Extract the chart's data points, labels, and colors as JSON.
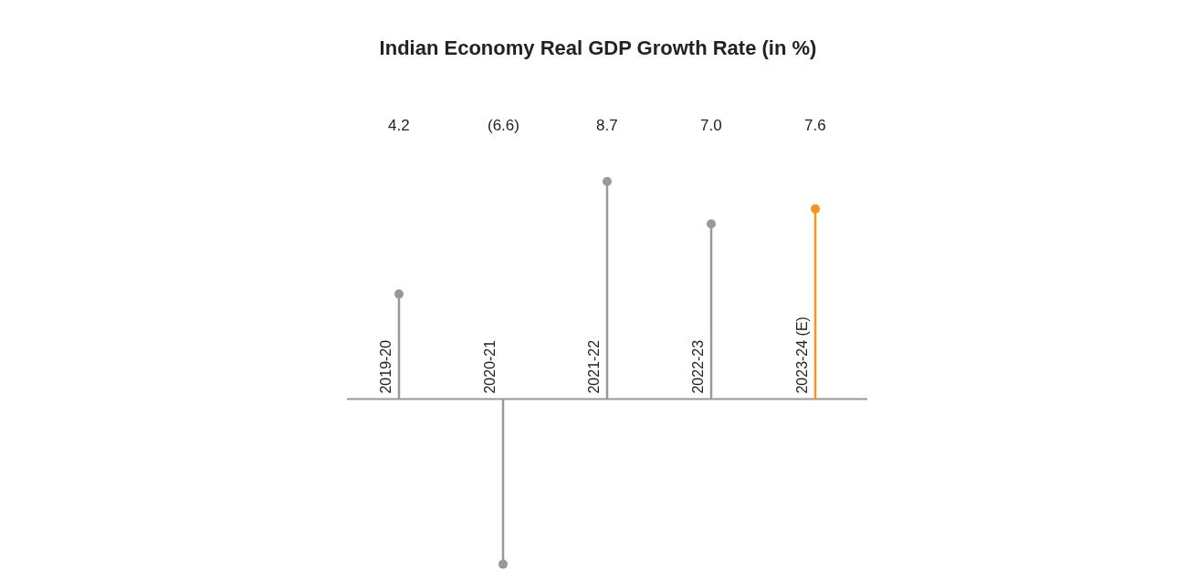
{
  "chart_data": {
    "type": "lollipop",
    "title": "Indian Economy Real GDP Growth Rate (in %)",
    "categories": [
      "2019-20",
      "2020-21",
      "2021-22",
      "2022-23",
      "2023-24 (E)"
    ],
    "values": [
      4.2,
      -6.6,
      8.7,
      7.0,
      7.6
    ],
    "value_labels": [
      "4.2",
      "(6.6)",
      "8.7",
      "7.0",
      "7.6"
    ],
    "colors": [
      "#999999",
      "#999999",
      "#999999",
      "#999999",
      "#f7941d"
    ],
    "marker": "circle"
  }
}
